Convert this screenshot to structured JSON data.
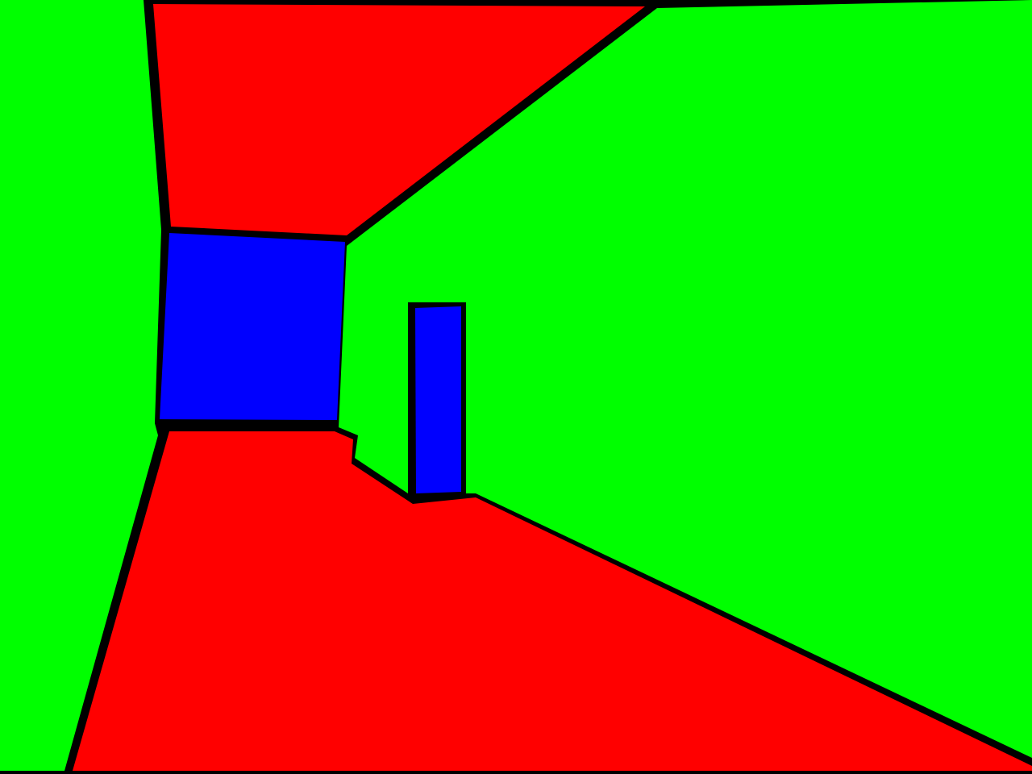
{
  "scene": {
    "kind": "first-person corridor view",
    "palette": {
      "wall": "#00FF00",
      "surface": "#FF0000",
      "end_wall": "#0000FF",
      "doorway": "#0000FF",
      "edge": "#000000"
    }
  }
}
